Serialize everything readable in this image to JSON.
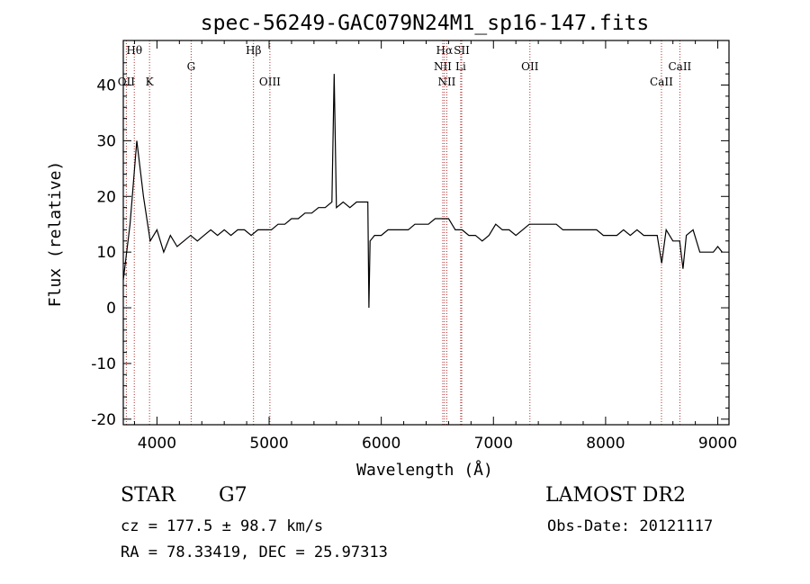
{
  "chart_data": {
    "type": "line",
    "title": "spec-56249-GAC079N24M1_sp16-147.fits",
    "xlabel": "Wavelength (Å)",
    "ylabel": "Flux (relative)",
    "xlim": [
      3700,
      9100
    ],
    "ylim": [
      -21,
      48
    ],
    "xticks": [
      4000,
      5000,
      6000,
      7000,
      8000,
      9000
    ],
    "yticks": [
      -20,
      -10,
      0,
      10,
      20,
      30,
      40
    ],
    "grid": false,
    "series": [
      {
        "color": "#000000",
        "x": [
          3700,
          3760,
          3820,
          3880,
          3940,
          4000,
          4060,
          4120,
          4180,
          4240,
          4300,
          4360,
          4420,
          4480,
          4540,
          4600,
          4660,
          4720,
          4780,
          4840,
          4900,
          4960,
          5020,
          5080,
          5140,
          5200,
          5260,
          5320,
          5380,
          5440,
          5500,
          5560,
          5580,
          5600,
          5660,
          5720,
          5780,
          5840,
          5880,
          5890,
          5900,
          5940,
          6000,
          6060,
          6120,
          6180,
          6240,
          6300,
          6360,
          6420,
          6480,
          6540,
          6600,
          6660,
          6720,
          6780,
          6840,
          6900,
          6960,
          7020,
          7080,
          7140,
          7200,
          7260,
          7320,
          7380,
          7440,
          7500,
          7560,
          7620,
          7680,
          7740,
          7800,
          7860,
          7920,
          7980,
          8040,
          8100,
          8160,
          8220,
          8280,
          8340,
          8400,
          8460,
          8500,
          8540,
          8600,
          8660,
          8690,
          8720,
          8780,
          8840,
          8900,
          8960,
          9000,
          9040
        ],
        "y": [
          5,
          15,
          30,
          20,
          12,
          14,
          10,
          13,
          11,
          12,
          13,
          12,
          13,
          14,
          13,
          14,
          13,
          14,
          14,
          13,
          14,
          14,
          14,
          15,
          15,
          16,
          16,
          17,
          17,
          18,
          18,
          19,
          42,
          18,
          19,
          18,
          19,
          19,
          19,
          0,
          12,
          13,
          13,
          14,
          14,
          14,
          14,
          15,
          15,
          15,
          16,
          16,
          16,
          14,
          14,
          13,
          13,
          12,
          13,
          15,
          14,
          14,
          13,
          14,
          15,
          15,
          15,
          15,
          15,
          14,
          14,
          14,
          14,
          14,
          14,
          13,
          13,
          13,
          14,
          13,
          14,
          13,
          13,
          13,
          8,
          14,
          12,
          12,
          7,
          13,
          14,
          10,
          10,
          10,
          11,
          10
        ]
      }
    ],
    "lines": [
      {
        "name": "Hθ",
        "x": 3798,
        "row": 1
      },
      {
        "name": "OII",
        "x": 3727,
        "row": 3
      },
      {
        "name": "K",
        "x": 3934,
        "row": 3
      },
      {
        "name": "G",
        "x": 4305,
        "row": 2
      },
      {
        "name": "Hβ",
        "x": 4861,
        "row": 1
      },
      {
        "name": "OIII",
        "x": 5007,
        "row": 3
      },
      {
        "name": "Hα",
        "x": 6563,
        "row": 1
      },
      {
        "name": "SII",
        "x": 6717,
        "row": 1
      },
      {
        "name": "NII",
        "x": 6548,
        "row": 2
      },
      {
        "name": "Li",
        "x": 6708,
        "row": 2
      },
      {
        "name": "NII",
        "x": 6584,
        "row": 3
      },
      {
        "name": "OII",
        "x": 7325,
        "row": 2
      },
      {
        "name": "CaII",
        "x": 8498,
        "row": 3
      },
      {
        "name": "CaII",
        "x": 8662,
        "row": 2
      }
    ]
  },
  "info": {
    "class": "STAR",
    "subclass": "G7",
    "survey": "LAMOST DR2",
    "cz": "cz = 177.5 ± 98.7 km/s",
    "obsdate": "Obs-Date: 20121117",
    "radec": "RA =  78.33419, DEC =  25.97313"
  }
}
